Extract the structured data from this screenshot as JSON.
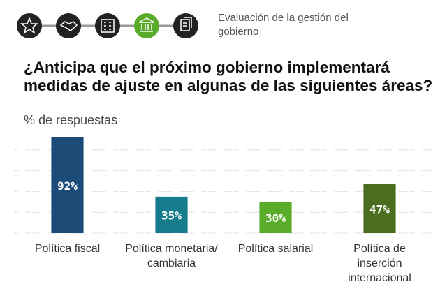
{
  "header": {
    "title": "Evaluación de la gestión del gobierno"
  },
  "chart_data": {
    "type": "bar",
    "title": "¿Anticipa que el próximo gobierno implementará medidas de ajuste en algunas de las siguientes áreas?",
    "subtitle": "% de respuestas",
    "categories": [
      "Política fiscal",
      "Política monetaria/ cambiaria",
      "Política salarial",
      "Política de inserción internacional"
    ],
    "values": [
      92,
      35,
      30,
      47
    ],
    "value_labels": [
      "92%",
      "35%",
      "30%",
      "47%"
    ],
    "colors": [
      "#1d4b78",
      "#167b8c",
      "#5aab2a",
      "#4b6d1f"
    ],
    "ylim": [
      0,
      100
    ],
    "yticks": [
      0,
      20,
      40,
      60,
      80
    ],
    "grid": true
  }
}
